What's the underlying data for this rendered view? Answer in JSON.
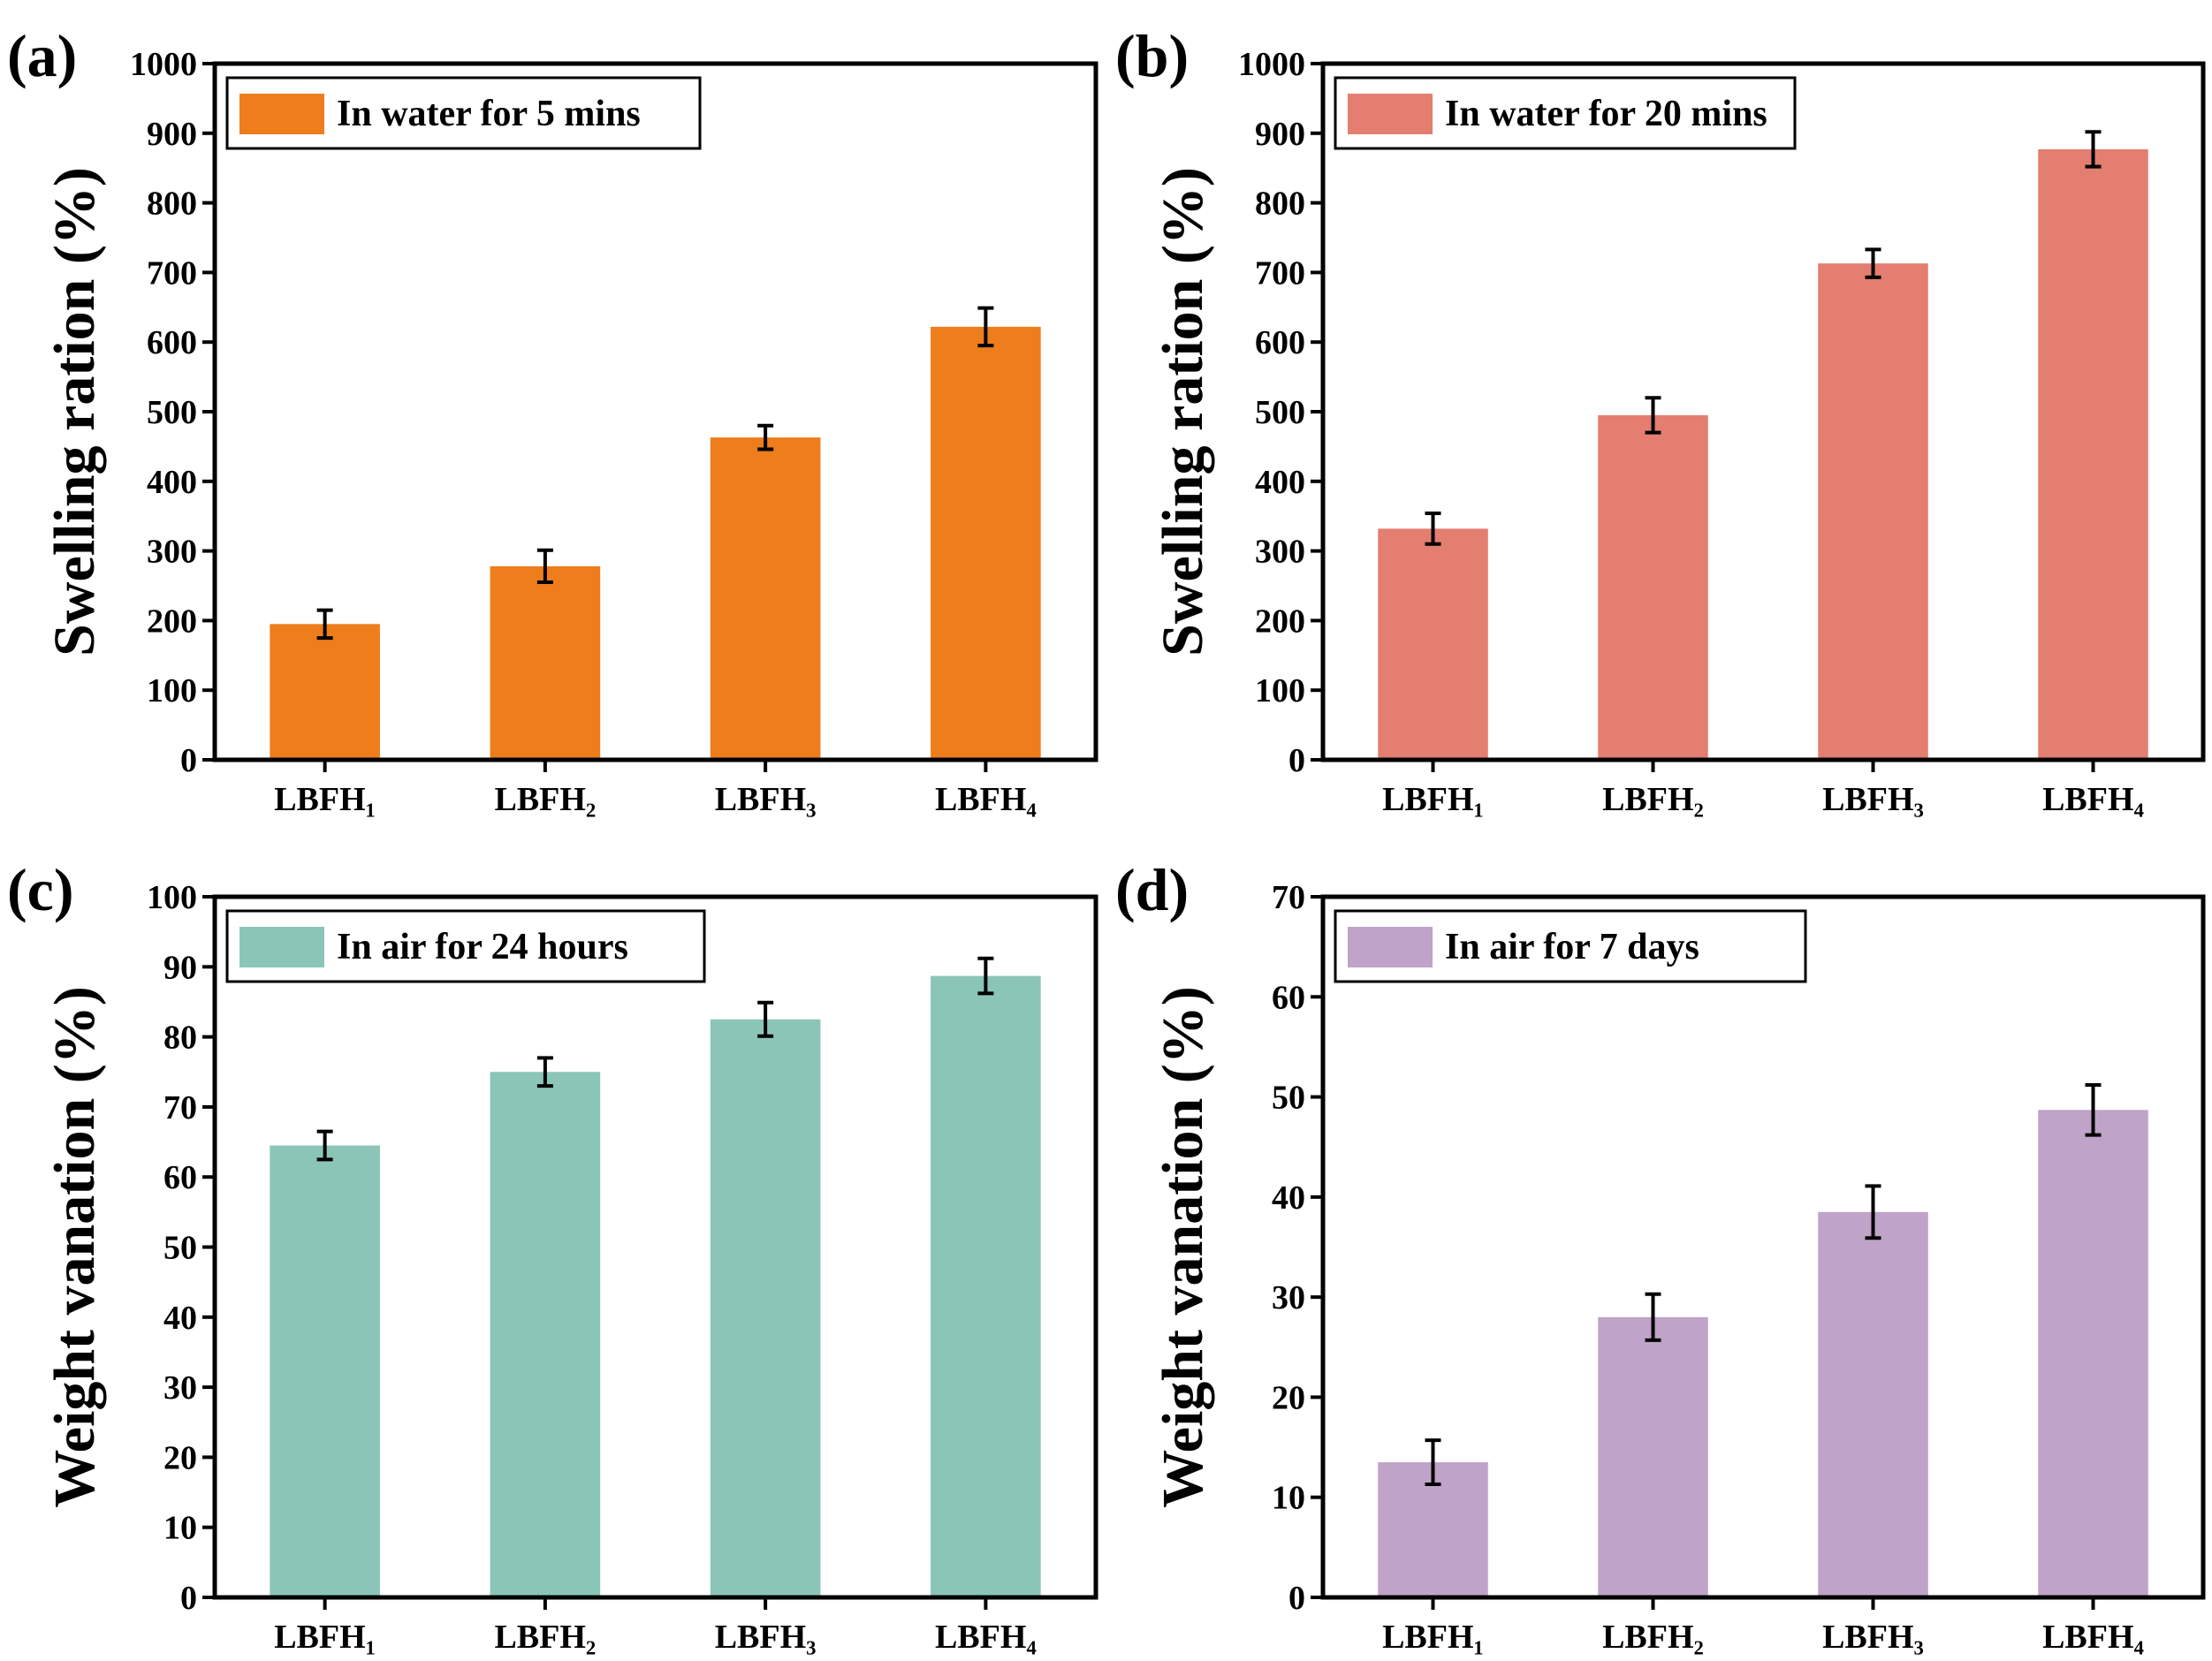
{
  "figure_title": "",
  "chart_data": [
    {
      "panel_label": "(a)",
      "type": "bar",
      "categories": [
        "LBFH₁",
        "LBFH₂",
        "LBFH₃",
        "LBFH₄"
      ],
      "values": [
        195,
        278,
        463,
        622
      ],
      "errors": [
        20,
        23,
        17,
        27
      ],
      "ylabel": "Swelling ration (%)",
      "ylim": [
        0,
        1000
      ],
      "yticks": [
        0,
        100,
        200,
        300,
        400,
        500,
        600,
        700,
        800,
        900,
        1000
      ],
      "legend": "In water for 5 mins",
      "color": "#ee7d1c"
    },
    {
      "panel_label": "(b)",
      "type": "bar",
      "categories": [
        "LBFH₁",
        "LBFH₂",
        "LBFH₃",
        "LBFH₄"
      ],
      "values": [
        332,
        495,
        713,
        877
      ],
      "errors": [
        22,
        25,
        20,
        25
      ],
      "ylabel": "Swelling ration (%)",
      "ylim": [
        0,
        1000
      ],
      "yticks": [
        0,
        100,
        200,
        300,
        400,
        500,
        600,
        700,
        800,
        900,
        1000
      ],
      "legend": "In water for 20 mins",
      "color": "#e47e70"
    },
    {
      "panel_label": "(c)",
      "type": "bar",
      "categories": [
        "LBFH₁",
        "LBFH₂",
        "LBFH₃",
        "LBFH₄"
      ],
      "values": [
        64.5,
        75,
        82.5,
        88.7
      ],
      "errors": [
        2,
        2,
        2.4,
        2.5
      ],
      "ylabel": "Weight vanation (%)",
      "ylim": [
        0,
        100
      ],
      "yticks": [
        0,
        10,
        20,
        30,
        40,
        50,
        60,
        70,
        80,
        90,
        100
      ],
      "legend": "In air for 24 hours",
      "color": "#8ac5b8"
    },
    {
      "panel_label": "(d)",
      "type": "bar",
      "categories": [
        "LBFH₁",
        "LBFH₂",
        "LBFH₃",
        "LBFH₄"
      ],
      "values": [
        13.5,
        28,
        38.5,
        48.7
      ],
      "errors": [
        2.2,
        2.3,
        2.6,
        2.5
      ],
      "ylabel": "Weight vanation (%)",
      "ylim": [
        0,
        70
      ],
      "yticks": [
        0,
        10,
        20,
        30,
        40,
        50,
        60,
        70
      ],
      "legend": "In air for 7 days",
      "color": "#bfa3c8"
    }
  ]
}
